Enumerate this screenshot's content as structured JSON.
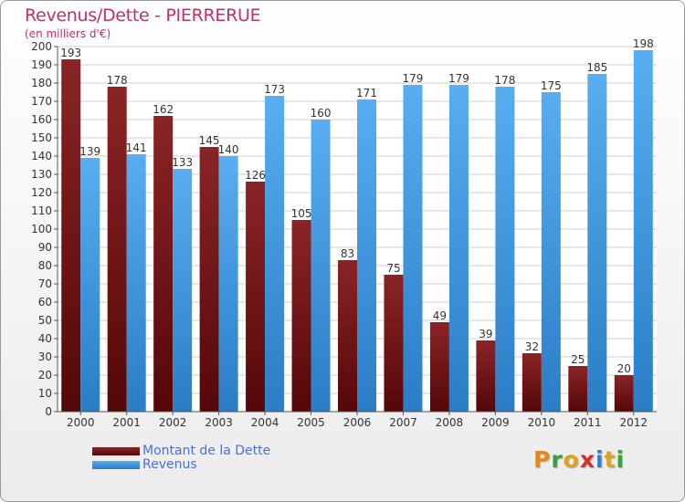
{
  "header": {
    "title": "Revenus/Dette - PIERRERUE",
    "subtitle": "(en milliers d'€)"
  },
  "legend": {
    "items": [
      {
        "label": "Montant de la Dette",
        "color": "#7a1518"
      },
      {
        "label": "Revenus",
        "color": "#3d9ae0"
      }
    ]
  },
  "logo": {
    "letters": [
      "P",
      "r",
      "o",
      "x",
      "i",
      "t",
      "i"
    ],
    "colors": [
      "#e08a1e",
      "#3ba03b",
      "#e0a020",
      "#d03030",
      "#2f7fd0",
      "#e0a020",
      "#3ba03b"
    ]
  },
  "chart_data": {
    "type": "bar",
    "title": "Revenus/Dette - PIERRERUE",
    "subtitle": "(en milliers d'€)",
    "categories": [
      "2000",
      "2001",
      "2002",
      "2003",
      "2004",
      "2005",
      "2006",
      "2007",
      "2008",
      "2009",
      "2010",
      "2011",
      "2012"
    ],
    "series": [
      {
        "name": "Montant de la Dette",
        "color": "#7a1518",
        "values": [
          193,
          178,
          162,
          145,
          126,
          105,
          83,
          75,
          49,
          39,
          32,
          25,
          20
        ]
      },
      {
        "name": "Revenus",
        "color": "#3d9ae0",
        "values": [
          139,
          141,
          133,
          140,
          173,
          160,
          171,
          179,
          179,
          178,
          175,
          185,
          198
        ]
      }
    ],
    "ylim": [
      0,
      200
    ],
    "ytick_step": 10,
    "grid": true,
    "legend_position": "bottom-left"
  }
}
